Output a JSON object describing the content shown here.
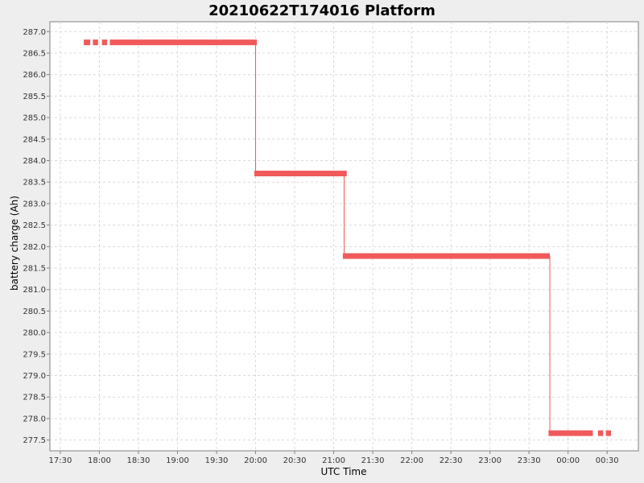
{
  "chart_data": {
    "type": "line",
    "title": "20210622T174016 Platform",
    "xlabel": "UTC Time",
    "ylabel": "battery charge (Ah)",
    "x_ticks": [
      "17:30",
      "18:00",
      "18:30",
      "19:00",
      "19:30",
      "20:00",
      "20:30",
      "21:00",
      "21:30",
      "22:00",
      "22:30",
      "23:00",
      "23:30",
      "00:00",
      "00:30"
    ],
    "x_tick_minutes": [
      1050,
      1080,
      1110,
      1140,
      1170,
      1200,
      1230,
      1260,
      1290,
      1320,
      1350,
      1380,
      1410,
      1440,
      1470
    ],
    "x_range_minutes": [
      1042,
      1494
    ],
    "y_ticks": [
      287.0,
      286.5,
      286.0,
      285.5,
      285.0,
      284.5,
      284.0,
      283.5,
      283.0,
      282.5,
      282.0,
      281.5,
      281.0,
      280.5,
      280.0,
      279.5,
      279.0,
      278.5,
      278.0,
      277.5
    ],
    "ylim": [
      277.25,
      287.23
    ],
    "grid": true,
    "series": [
      {
        "color": "#f05a5a",
        "segments": [
          {
            "x_start": 1068,
            "x_end": 1073,
            "y": 286.75
          },
          {
            "x_start": 1075,
            "x_end": 1079,
            "y": 286.75
          },
          {
            "x_start": 1082,
            "x_end": 1086,
            "y": 286.75
          },
          {
            "x_start": 1088,
            "x_end": 1201,
            "y": 286.75
          },
          {
            "x_start": 1199,
            "x_end": 1270,
            "y": 283.7
          },
          {
            "x_start": 1267,
            "x_end": 1426,
            "y": 281.78
          },
          {
            "x_start": 1425,
            "x_end": 1459,
            "y": 277.66
          },
          {
            "x_start": 1463,
            "x_end": 1467,
            "y": 277.66
          },
          {
            "x_start": 1469,
            "x_end": 1473,
            "y": 277.66
          }
        ],
        "steps": [
          {
            "x": 1200,
            "y_from": 286.75,
            "y_to": 283.7
          },
          {
            "x": 1268,
            "y_from": 283.7,
            "y_to": 281.78
          },
          {
            "x": 1426,
            "y_from": 281.78,
            "y_to": 277.66
          }
        ]
      }
    ]
  }
}
